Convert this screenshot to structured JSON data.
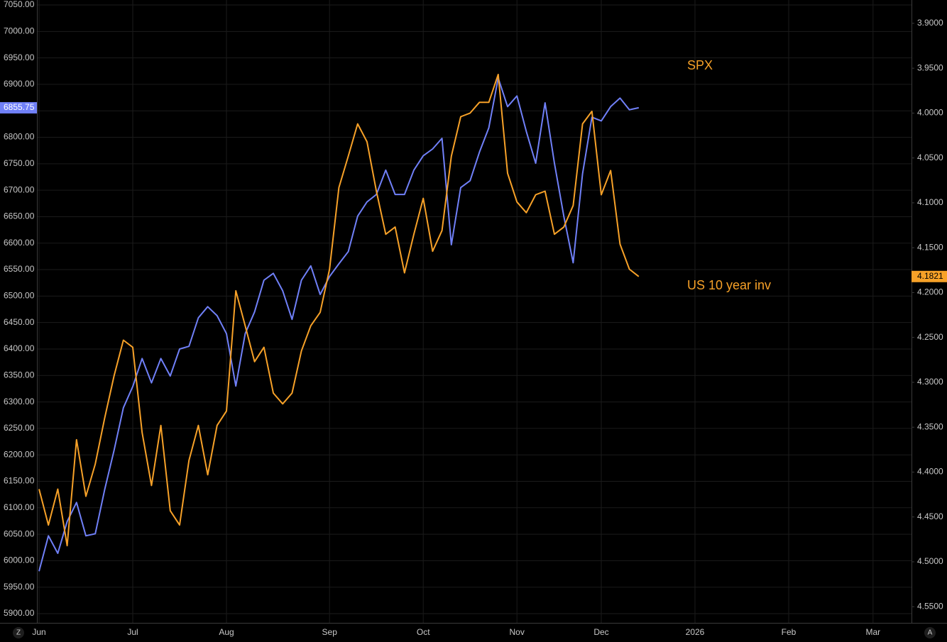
{
  "chart_data": {
    "type": "line",
    "annotations": [
      {
        "text": "SPX",
        "color": "#f7a128"
      },
      {
        "text": "US 10 year inv",
        "color": "#f7a128"
      }
    ],
    "categories": [
      "Jun",
      null,
      null,
      null,
      null,
      null,
      null,
      null,
      null,
      null,
      "Jul",
      null,
      null,
      null,
      null,
      null,
      null,
      null,
      null,
      null,
      "Aug",
      null,
      null,
      null,
      null,
      null,
      null,
      null,
      null,
      null,
      null,
      "Sep",
      null,
      null,
      null,
      null,
      null,
      null,
      null,
      null,
      null,
      "Oct",
      null,
      null,
      null,
      null,
      null,
      null,
      null,
      null,
      null,
      "Nov",
      null,
      null,
      null,
      null,
      null,
      null,
      null,
      null,
      "Dec",
      null,
      null,
      null,
      null,
      null,
      null,
      null,
      null,
      null,
      "2026",
      null,
      null,
      null,
      null,
      null,
      null,
      null,
      null,
      null,
      "Feb",
      null,
      null,
      null,
      null,
      null,
      null,
      null,
      null,
      "Mar",
      null,
      null,
      null,
      null
    ],
    "series": [
      {
        "name": "SPX",
        "color": "#7080f8",
        "axis": "y",
        "values": [
          5980,
          6047,
          6014,
          6074,
          6110,
          6047,
          6051,
          6134,
          6208,
          6289,
          6329,
          6382,
          6336,
          6382,
          6349,
          6400,
          6405,
          6459,
          6480,
          6463,
          6429,
          6330,
          6429,
          6470,
          6530,
          6543,
          6510,
          6456,
          6530,
          6557,
          6503,
          6537,
          6561,
          6584,
          6651,
          6678,
          6692,
          6738,
          6692,
          6692,
          6738,
          6765,
          6778,
          6798,
          6597,
          6705,
          6718,
          6772,
          6818,
          6912,
          6858,
          6878,
          6811,
          6751,
          6865,
          6751,
          6651,
          6563,
          6731,
          6838,
          6831,
          6858,
          6874,
          6852,
          6855.75,
          null,
          null,
          null,
          null,
          null,
          null,
          null,
          null,
          null,
          null,
          null,
          null,
          null,
          null,
          null,
          null,
          null,
          null,
          null,
          null,
          null,
          null,
          null,
          null,
          null,
          null,
          null,
          null,
          null
        ]
      },
      {
        "name": "US 10 year inv",
        "color": "#f7a128",
        "axis": "y2",
        "values": [
          4.419,
          4.459,
          4.419,
          4.482,
          4.364,
          4.427,
          4.391,
          4.34,
          4.293,
          4.253,
          4.261,
          4.356,
          4.415,
          4.348,
          4.443,
          4.459,
          4.387,
          4.348,
          4.403,
          4.348,
          4.332,
          4.198,
          4.237,
          4.277,
          4.261,
          4.312,
          4.324,
          4.312,
          4.265,
          4.237,
          4.222,
          4.174,
          4.083,
          4.048,
          4.012,
          4.032,
          4.087,
          4.135,
          4.127,
          4.178,
          4.135,
          4.095,
          4.154,
          4.131,
          4.048,
          4.004,
          4.0,
          3.988,
          3.988,
          3.957,
          4.067,
          4.099,
          4.111,
          4.091,
          4.087,
          4.135,
          4.127,
          4.103,
          4.012,
          3.998,
          4.091,
          4.064,
          4.146,
          4.174,
          4.1821,
          null,
          null,
          null,
          null,
          null,
          null,
          null,
          null,
          null,
          null,
          null,
          null,
          null,
          null,
          null,
          null,
          null,
          null,
          null,
          null,
          null,
          null,
          null,
          null,
          null,
          null,
          null,
          null,
          null
        ]
      }
    ],
    "ylim": [
      5882.6,
      7059.4
    ],
    "yticks": [
      {
        "value": 5900,
        "label": "5900.00"
      },
      {
        "value": 5950,
        "label": "5950.00"
      },
      {
        "value": 6000,
        "label": "6000.00"
      },
      {
        "value": 6050,
        "label": "6050.00"
      },
      {
        "value": 6100,
        "label": "6100.00"
      },
      {
        "value": 6150,
        "label": "6150.00"
      },
      {
        "value": 6200,
        "label": "6200.00"
      },
      {
        "value": 6250,
        "label": "6250.00"
      },
      {
        "value": 6300,
        "label": "6300.00"
      },
      {
        "value": 6350,
        "label": "6350.00"
      },
      {
        "value": 6400,
        "label": "6400.00"
      },
      {
        "value": 6450,
        "label": "6450.00"
      },
      {
        "value": 6500,
        "label": "6500.00"
      },
      {
        "value": 6550,
        "label": "6550.00"
      },
      {
        "value": 6600,
        "label": "6600.00"
      },
      {
        "value": 6650,
        "label": "6650.00"
      },
      {
        "value": 6700,
        "label": "6700.00"
      },
      {
        "value": 6750,
        "label": "6750.00"
      },
      {
        "value": 6800,
        "label": "6800.00"
      },
      {
        "value": 6850,
        "label": "6850.00"
      },
      {
        "value": 6900,
        "label": "6900.00"
      },
      {
        "value": 6950,
        "label": "6950.00"
      },
      {
        "value": 7000,
        "label": "7000.00"
      },
      {
        "value": 7050,
        "label": "7050.00"
      }
    ],
    "y2lim": [
      4.568,
      3.874
    ],
    "y2ticks": [
      {
        "value": 3.9,
        "label": "3.9000"
      },
      {
        "value": 3.95,
        "label": "3.9500"
      },
      {
        "value": 4.0,
        "label": "4.0000"
      },
      {
        "value": 4.05,
        "label": "4.0500"
      },
      {
        "value": 4.1,
        "label": "4.1000"
      },
      {
        "value": 4.15,
        "label": "4.1500"
      },
      {
        "value": 4.2,
        "label": "4.2000"
      },
      {
        "value": 4.25,
        "label": "4.2500"
      },
      {
        "value": 4.3,
        "label": "4.3000"
      },
      {
        "value": 4.35,
        "label": "4.3500"
      },
      {
        "value": 4.4,
        "label": "4.4000"
      },
      {
        "value": 4.45,
        "label": "4.4500"
      },
      {
        "value": 4.5,
        "label": "4.5000"
      },
      {
        "value": 4.55,
        "label": "4.5500"
      }
    ],
    "grid": true
  },
  "ui": {
    "left_button": "Z",
    "right_button": "A"
  }
}
